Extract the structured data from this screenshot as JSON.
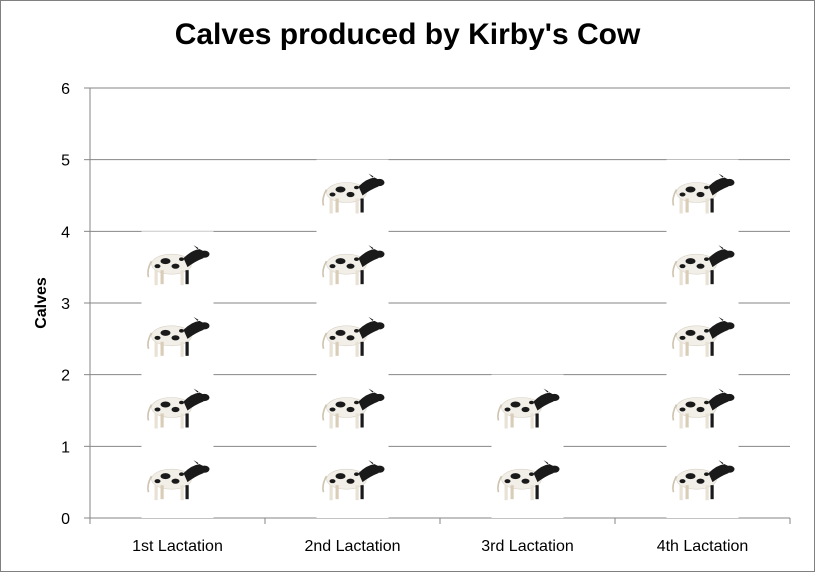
{
  "chart_data": {
    "type": "bar",
    "title": "Calves produced by Kirby's Cow",
    "xlabel": "",
    "ylabel": "Calves",
    "categories": [
      "1st Lactation",
      "2nd Lactation",
      "3rd Lactation",
      "4th Lactation"
    ],
    "values": [
      4,
      5,
      2,
      5
    ],
    "ylim": [
      0,
      6
    ],
    "yticks": [
      "0",
      "1",
      "2",
      "3",
      "4",
      "5",
      "6"
    ],
    "grid": true,
    "legend": "none",
    "pictogram_icon": "calf-icon",
    "colors": {
      "grid": "#868686",
      "axis": "#868686",
      "calf_body": "#f2efe8",
      "calf_spots": "#1a1a1a"
    }
  }
}
